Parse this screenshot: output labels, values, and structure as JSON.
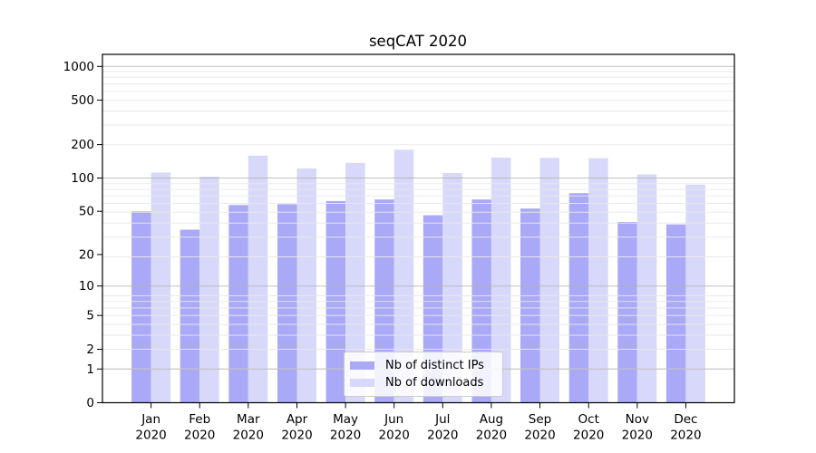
{
  "chart_data": {
    "type": "bar",
    "title": "seqCAT 2020",
    "categories": [
      "Jan 2020",
      "Feb 2020",
      "Mar 2020",
      "Apr 2020",
      "May 2020",
      "Jun 2020",
      "Jul 2020",
      "Aug 2020",
      "Sep 2020",
      "Oct 2020",
      "Nov 2020",
      "Dec 2020"
    ],
    "series": [
      {
        "name": "Nb of distinct IPs",
        "color": "#a9a9f7",
        "values": [
          50,
          34,
          57,
          58,
          62,
          64,
          46,
          64,
          53,
          73,
          40,
          38
        ]
      },
      {
        "name": "Nb of downloads",
        "color": "#d8d8fa",
        "values": [
          112,
          103,
          159,
          122,
          137,
          180,
          111,
          153,
          152,
          151,
          108,
          87
        ]
      }
    ],
    "xlabel": "",
    "ylabel": "",
    "yscale": "log1p",
    "ylim": [
      0,
      1281
    ],
    "yticks": [
      0,
      1,
      2,
      5,
      10,
      20,
      50,
      100,
      200,
      500,
      1000
    ],
    "major_gridlines": [
      1,
      10,
      100,
      1000
    ],
    "grid": true,
    "legend_loc": "lower center inside axes",
    "colors": {
      "major_grid": "#b0b0b0",
      "minor_grid": "#e8e8e8",
      "axis": "#000000"
    }
  }
}
